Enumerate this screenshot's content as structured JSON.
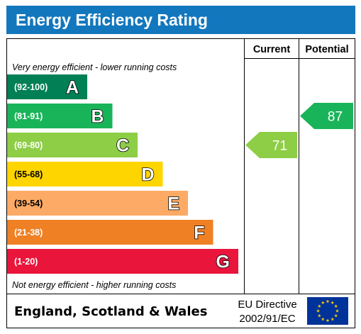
{
  "chart_data": {
    "type": "bar",
    "title": "Energy Efficiency Rating",
    "columns": [
      "Current",
      "Potential"
    ],
    "top_note": "Very energy efficient - lower running costs",
    "bottom_note": "Not energy efficient - higher running costs",
    "bands": [
      {
        "letter": "A",
        "range": "(92-100)",
        "min": 92,
        "max": 100,
        "color": "#008054"
      },
      {
        "letter": "B",
        "range": "(81-91)",
        "min": 81,
        "max": 91,
        "color": "#19b459"
      },
      {
        "letter": "C",
        "range": "(69-80)",
        "min": 69,
        "max": 80,
        "color": "#8dce46"
      },
      {
        "letter": "D",
        "range": "(55-68)",
        "min": 55,
        "max": 68,
        "color": "#ffd500"
      },
      {
        "letter": "E",
        "range": "(39-54)",
        "min": 39,
        "max": 54,
        "color": "#fcaa65"
      },
      {
        "letter": "F",
        "range": "(21-38)",
        "min": 21,
        "max": 38,
        "color": "#ef8023"
      },
      {
        "letter": "G",
        "range": "(1-20)",
        "min": 1,
        "max": 20,
        "color": "#e9153b"
      }
    ],
    "ratings": [
      {
        "column": "Current",
        "value": 71,
        "label": "71",
        "color": "#8dce46"
      },
      {
        "column": "Potential",
        "value": 87,
        "label": "87",
        "color": "#19b459"
      }
    ],
    "footer": {
      "region": "England, Scotland & Wales",
      "directive_line1": "EU Directive",
      "directive_line2": "2002/91/EC",
      "flag_color": "#003399",
      "star_color": "#ffcc00"
    },
    "title_bar_color": "#1277bd"
  }
}
